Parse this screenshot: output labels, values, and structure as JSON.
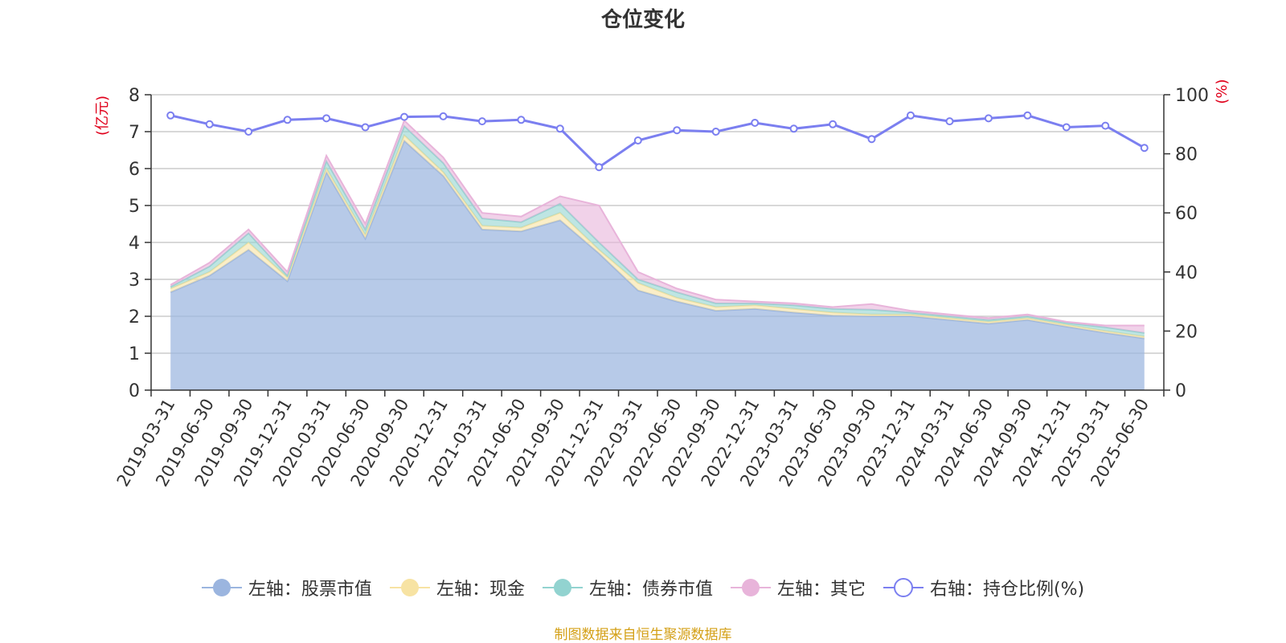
{
  "title": "仓位变化",
  "source_note": "制图数据来自恒生聚源数据库",
  "colors": {
    "stock": "#9bb5df",
    "cash": "#f7e3a3",
    "bond": "#92d3d0",
    "other": "#e8b4da",
    "ratio": "#7b7ff0",
    "axis_unit": "#e0001b",
    "grid": "#cccccc",
    "axis": "#333333",
    "source": "#d4a017"
  },
  "chart_data": {
    "type": "area",
    "title": "仓位变化",
    "stacked": true,
    "x": [
      "2019-03-31",
      "2019-06-30",
      "2019-09-30",
      "2019-12-31",
      "2020-03-31",
      "2020-06-30",
      "2020-09-30",
      "2020-12-31",
      "2021-03-31",
      "2021-06-30",
      "2021-09-30",
      "2021-12-31",
      "2022-03-31",
      "2022-06-30",
      "2022-09-30",
      "2022-12-31",
      "2023-03-31",
      "2023-06-30",
      "2023-09-30",
      "2023-12-31",
      "2024-03-31",
      "2024-06-30",
      "2024-09-30",
      "2024-12-31",
      "2025-03-31",
      "2025-06-30"
    ],
    "y_left": {
      "unit": "(亿元)",
      "ylim": [
        0,
        8
      ],
      "ticks": [
        "0",
        "1",
        "2",
        "3",
        "4",
        "5",
        "6",
        "7",
        "8"
      ]
    },
    "y_right": {
      "unit": "(%)",
      "ylim": [
        0,
        100
      ],
      "ticks": [
        "0",
        "20",
        "40",
        "60",
        "80",
        "100"
      ]
    },
    "grid": true,
    "legend_position": "bottom",
    "series": [
      {
        "name": "左轴：股票市值",
        "axis": "left",
        "type": "area",
        "color_key": "stock",
        "values": [
          2.65,
          3.1,
          3.8,
          2.95,
          5.9,
          4.1,
          6.75,
          5.8,
          4.35,
          4.3,
          4.6,
          3.7,
          2.7,
          2.4,
          2.15,
          2.2,
          2.1,
          2.02,
          2.0,
          2.0,
          1.9,
          1.8,
          1.9,
          1.72,
          1.55,
          1.4
        ]
      },
      {
        "name": "左轴：现金",
        "axis": "left",
        "type": "area",
        "color_key": "cash",
        "values": [
          0.1,
          0.1,
          0.2,
          0.1,
          0.1,
          0.1,
          0.15,
          0.1,
          0.1,
          0.1,
          0.2,
          0.1,
          0.2,
          0.1,
          0.1,
          0.1,
          0.1,
          0.08,
          0.05,
          0.05,
          0.05,
          0.05,
          0.05,
          0.05,
          0.05,
          0.05
        ]
      },
      {
        "name": "左轴：债券市值",
        "axis": "left",
        "type": "area",
        "color_key": "bond",
        "values": [
          0.05,
          0.15,
          0.25,
          0.05,
          0.2,
          0.15,
          0.25,
          0.25,
          0.2,
          0.15,
          0.25,
          0.2,
          0.1,
          0.15,
          0.1,
          0.05,
          0.1,
          0.1,
          0.13,
          0.05,
          0.05,
          0.05,
          0.05,
          0.05,
          0.1,
          0.1
        ]
      },
      {
        "name": "左轴：其它",
        "axis": "left",
        "type": "area",
        "color_key": "other",
        "values": [
          0.05,
          0.1,
          0.1,
          0.1,
          0.15,
          0.15,
          0.15,
          0.15,
          0.15,
          0.15,
          0.2,
          1.0,
          0.2,
          0.1,
          0.1,
          0.05,
          0.05,
          0.05,
          0.15,
          0.05,
          0.05,
          0.05,
          0.05,
          0.03,
          0.05,
          0.2
        ]
      },
      {
        "name": "右轴：持仓比例(%)",
        "axis": "right",
        "type": "line",
        "color_key": "ratio",
        "values": [
          93,
          90,
          87.5,
          91.5,
          92,
          89,
          92.5,
          92.7,
          91,
          91.5,
          88.5,
          75.5,
          84.5,
          88,
          87.5,
          90.5,
          88.5,
          90,
          85,
          93,
          91,
          92,
          93,
          89,
          89.5,
          82
        ]
      }
    ]
  }
}
